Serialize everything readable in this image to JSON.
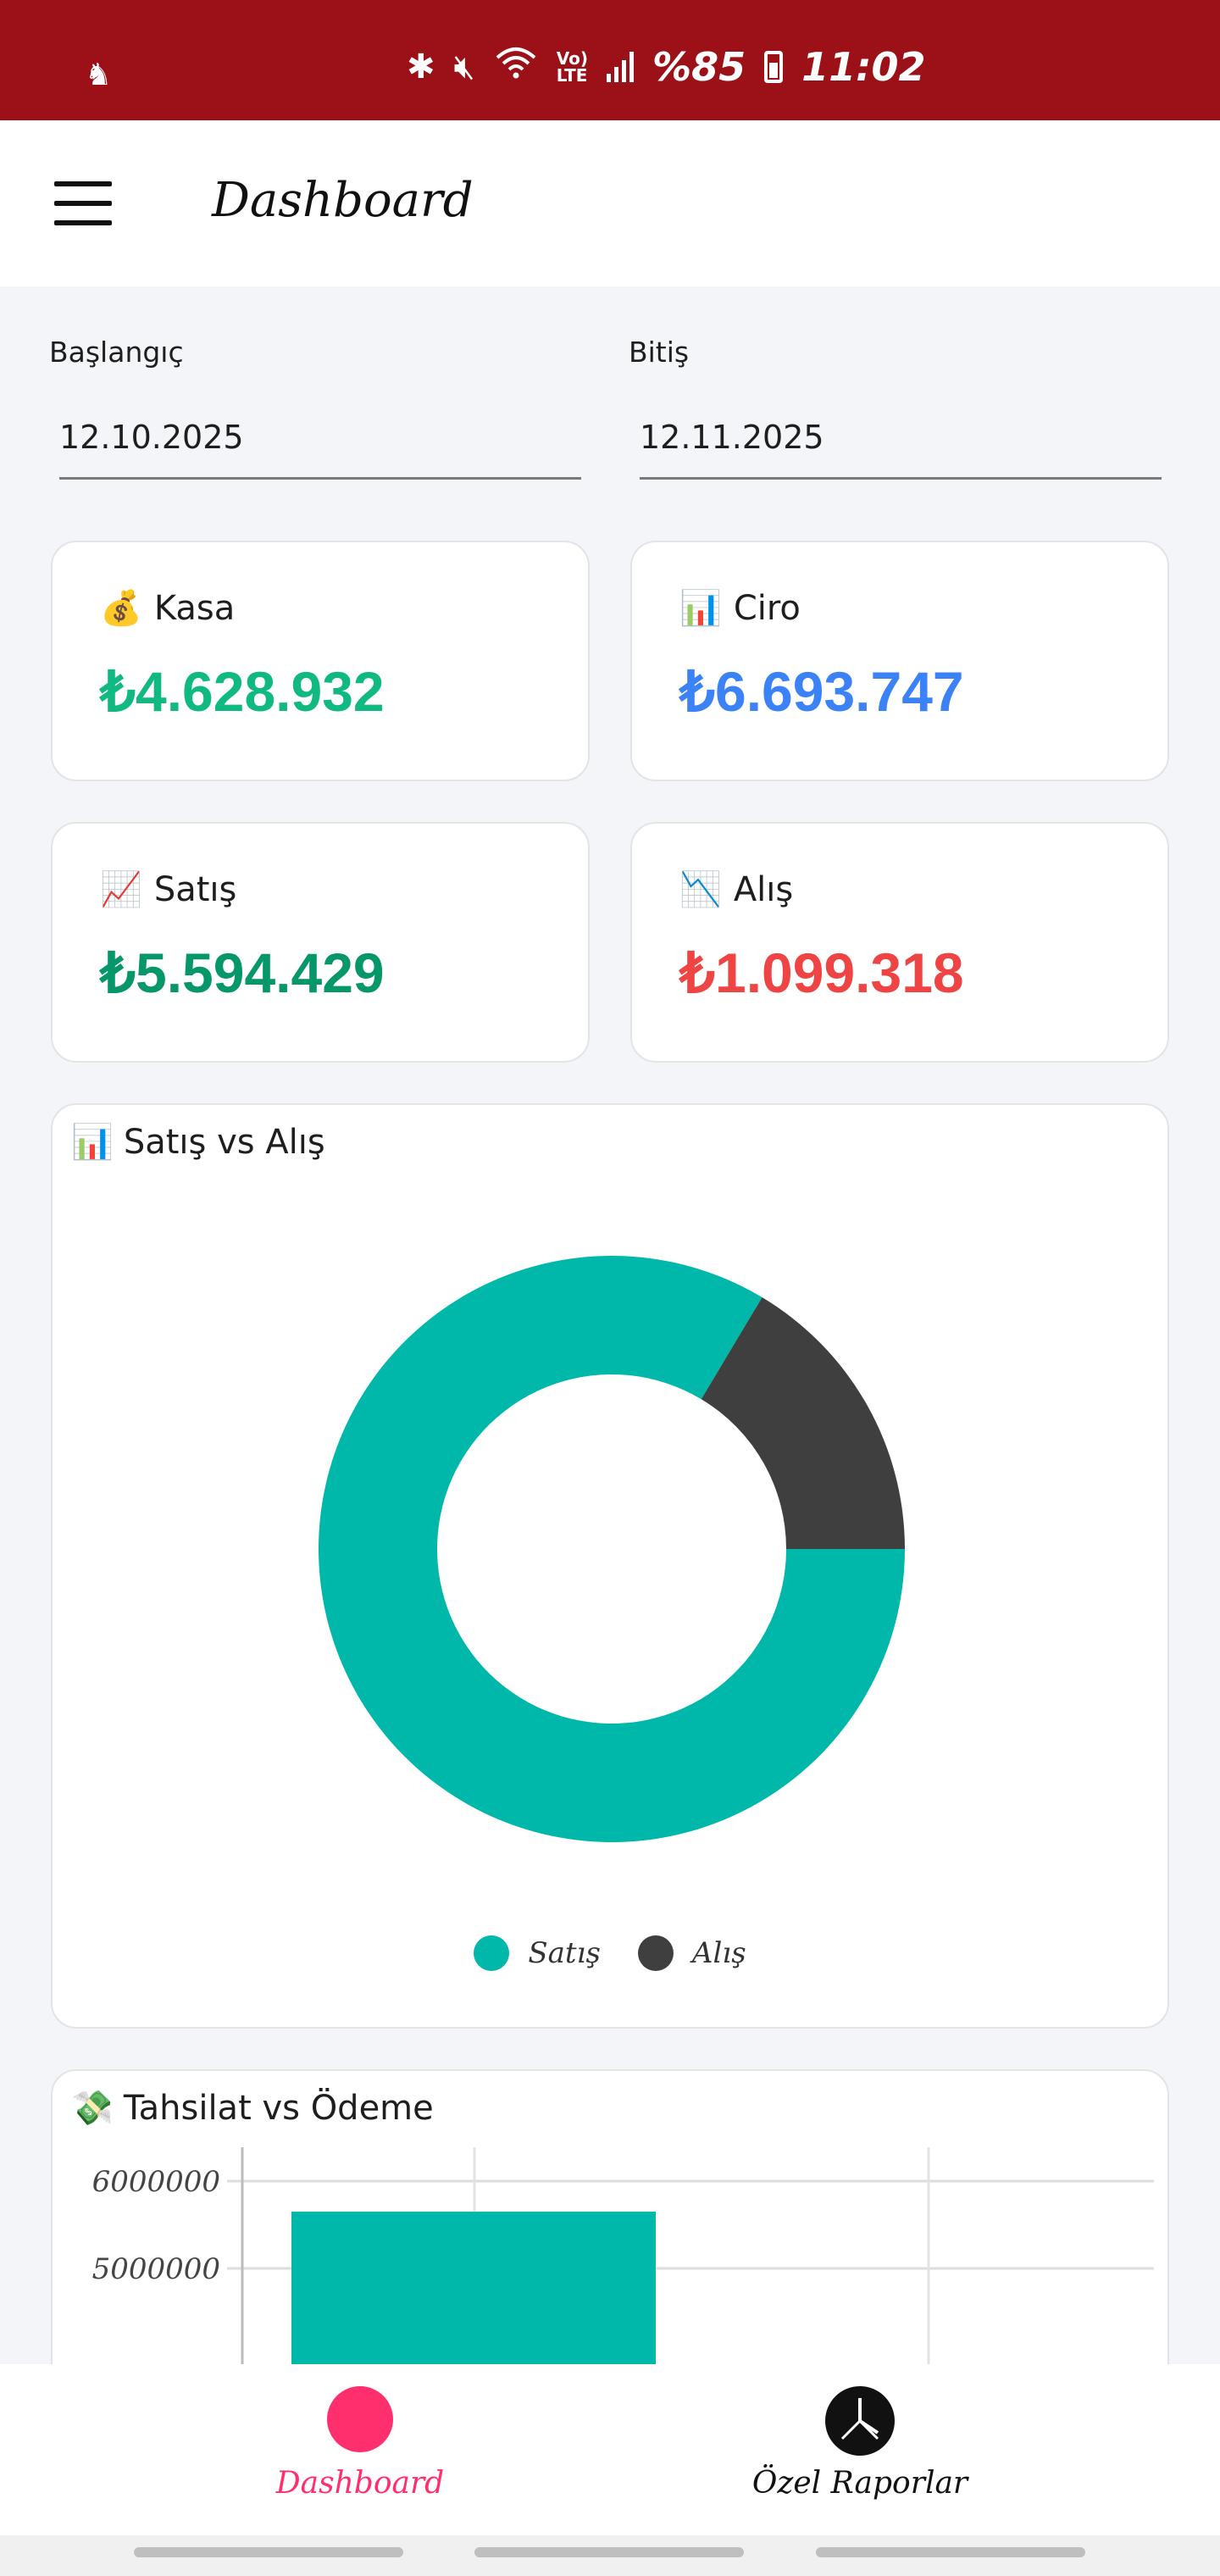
{
  "status_bar": {
    "battery_text": "%85",
    "time": "11:02"
  },
  "app_bar": {
    "title": "Dashboard"
  },
  "filters": {
    "start_label": "Başlangıç",
    "start_value": "12.10.2025",
    "end_label": "Bitiş",
    "end_value": "12.11.2025"
  },
  "stats": [
    {
      "icon": "money-bag-icon",
      "emoji": "💰",
      "label": "Kasa",
      "value": "₺4.628.932",
      "color": "#10b981"
    },
    {
      "icon": "bar-chart-icon",
      "emoji": "📊",
      "label": "Ciro",
      "value": "₺6.693.747",
      "color": "#3b82f6"
    },
    {
      "icon": "chart-up-icon",
      "emoji": "📈",
      "label": "Satış",
      "value": "₺5.594.429",
      "color": "#059669"
    },
    {
      "icon": "chart-down-icon",
      "emoji": "📉",
      "label": "Alış",
      "value": "₺1.099.318",
      "color": "#ef4444"
    }
  ],
  "donut_card": {
    "emoji": "📊",
    "title": "Satış vs Alış"
  },
  "bar_card": {
    "emoji": "💸",
    "title": "Tahsilat vs Ödeme"
  },
  "chart_data": [
    {
      "type": "pie",
      "title": "Satış vs Alış",
      "categories": [
        "Satış",
        "Alış"
      ],
      "values": [
        5594429,
        1099318
      ],
      "colors": [
        "#00b8a9",
        "#3f3f3f"
      ],
      "legend": "bottom"
    },
    {
      "type": "bar",
      "title": "Tahsilat vs Ödeme",
      "yticks": [
        "6000000",
        "5000000"
      ],
      "ylim_visible": [
        4700000,
        6300000
      ],
      "series": [
        {
          "values": [
            5650000
          ]
        }
      ],
      "colors": [
        "#00b8a9"
      ],
      "grid": true
    }
  ],
  "bottom_nav": {
    "items": [
      {
        "label": "Dashboard",
        "icon": "dashboard-icon",
        "active": true,
        "color": "#ff2f6e"
      },
      {
        "label": "Özel Raporlar",
        "icon": "reports-icon",
        "active": false,
        "color": "#111111"
      }
    ]
  },
  "theme": {
    "status_bar_color": "#9c1118",
    "accent": "#00b8a9"
  }
}
